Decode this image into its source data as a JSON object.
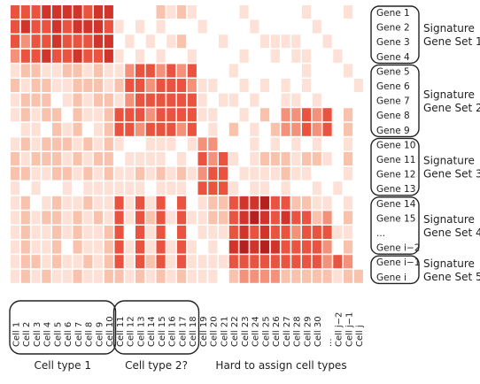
{
  "figure": {
    "gene_labels": [
      "Gene 1",
      "Gene 2",
      "Gene 3",
      "Gene 4",
      "Gene 5",
      "Gene 6",
      "Gene 7",
      "Gene 8",
      "Gene 9",
      "Gene 10",
      "Gene 11",
      "Gene 12",
      "Gene 13",
      "Gene 14",
      "Gene 15",
      "...",
      "Gene i−2",
      "Gene i−1",
      "Gene i"
    ],
    "gene_groups": [
      {
        "label_line1": "Signature",
        "label_line2": "Gene Set 1",
        "rows": [
          0,
          3
        ]
      },
      {
        "label_line1": "Signature",
        "label_line2": "Gene Set 2",
        "rows": [
          4,
          8
        ]
      },
      {
        "label_line1": "Signature",
        "label_line2": "Gene Set 3",
        "rows": [
          9,
          12
        ]
      },
      {
        "label_line1": "Signature",
        "label_line2": "Gene Set 4",
        "rows": [
          13,
          16
        ]
      },
      {
        "label_line1": "Signature",
        "label_line2": "Gene Set 5",
        "rows": [
          17,
          18
        ]
      }
    ],
    "cell_labels": [
      "Cell 1",
      "Cell 2",
      "Cell 3",
      "Cell 4",
      "Cell 5",
      "Cell 6",
      "Cell 7",
      "Cell 8",
      "Cell 9",
      "Cell 10",
      "Cell 11",
      "Cell 12",
      "Cell 13",
      "Cell 14",
      "Cell 15",
      "Cell 16",
      "Cell 17",
      "Cell 18",
      "Cell 19",
      "Cell 20",
      "Cell 21",
      "Cell 22",
      "Cell 23",
      "Cell 24",
      "Cell 25",
      "Cell 26",
      "Cell 27",
      "Cell 28",
      "Cell 29",
      "Cell 30",
      "...",
      "Cell j−2",
      "Cell j−1",
      "Cell j"
    ],
    "cell_groups": [
      {
        "label": "Cell type 1",
        "columns": [
          0,
          9
        ],
        "boxed": true
      },
      {
        "label": "Cell type 2?",
        "columns": [
          10,
          17
        ],
        "boxed": true
      },
      {
        "label": "Hard to assign cell types",
        "columns": [
          18,
          33
        ],
        "boxed": false
      }
    ],
    "color_scale": [
      "#ffffff",
      "#fde0d6",
      "#f9c2ad",
      "#f4917a",
      "#e9533f",
      "#d1342a",
      "#b5211e"
    ],
    "matrix": [
      [
        4,
        4,
        4,
        5,
        5,
        5,
        5,
        4,
        5,
        5,
        0,
        0,
        0,
        0,
        2,
        1,
        2,
        1,
        0,
        0,
        0,
        0,
        1,
        0,
        0,
        0,
        0,
        0,
        1,
        0,
        0,
        0,
        1,
        0
      ],
      [
        4,
        5,
        4,
        4,
        5,
        4,
        5,
        5,
        5,
        4,
        1,
        0,
        1,
        0,
        1,
        0,
        0,
        0,
        1,
        0,
        0,
        0,
        0,
        1,
        0,
        0,
        0,
        0,
        0,
        1,
        0,
        0,
        0,
        0
      ],
      [
        4,
        3,
        4,
        4,
        5,
        4,
        4,
        4,
        5,
        5,
        0,
        1,
        0,
        1,
        0,
        1,
        2,
        0,
        0,
        0,
        1,
        0,
        0,
        0,
        1,
        1,
        1,
        1,
        0,
        0,
        1,
        0,
        0,
        0
      ],
      [
        3,
        4,
        4,
        5,
        4,
        4,
        5,
        4,
        4,
        5,
        1,
        0,
        1,
        0,
        1,
        0,
        0,
        1,
        0,
        0,
        0,
        0,
        1,
        0,
        0,
        1,
        0,
        1,
        1,
        0,
        0,
        1,
        0,
        0
      ],
      [
        1,
        2,
        2,
        1,
        1,
        2,
        2,
        1,
        2,
        1,
        1,
        3,
        4,
        4,
        3,
        4,
        3,
        4,
        0,
        0,
        0,
        1,
        0,
        0,
        0,
        0,
        0,
        0,
        1,
        0,
        0,
        0,
        1,
        0
      ],
      [
        2,
        1,
        2,
        2,
        1,
        1,
        2,
        2,
        2,
        1,
        2,
        4,
        4,
        3,
        4,
        4,
        4,
        3,
        1,
        1,
        0,
        0,
        1,
        0,
        1,
        0,
        1,
        0,
        1,
        0,
        0,
        0,
        0,
        1
      ],
      [
        1,
        2,
        2,
        2,
        0,
        1,
        2,
        1,
        2,
        2,
        1,
        3,
        4,
        4,
        4,
        4,
        4,
        4,
        1,
        0,
        1,
        1,
        0,
        1,
        0,
        0,
        1,
        1,
        0,
        1,
        0,
        0,
        0,
        0
      ],
      [
        1,
        2,
        1,
        2,
        2,
        0,
        2,
        1,
        1,
        2,
        4,
        4,
        4,
        3,
        4,
        4,
        4,
        4,
        1,
        1,
        0,
        0,
        1,
        0,
        2,
        0,
        3,
        3,
        4,
        3,
        4,
        0,
        2,
        0
      ],
      [
        0,
        1,
        1,
        0,
        2,
        1,
        2,
        0,
        1,
        2,
        4,
        4,
        3,
        4,
        4,
        4,
        3,
        4,
        0,
        1,
        0,
        2,
        0,
        1,
        0,
        2,
        3,
        3,
        4,
        3,
        4,
        0,
        2,
        0
      ],
      [
        1,
        2,
        1,
        2,
        2,
        2,
        1,
        2,
        1,
        2,
        1,
        0,
        0,
        1,
        1,
        1,
        0,
        1,
        3,
        3,
        0,
        0,
        0,
        1,
        0,
        1,
        0,
        1,
        0,
        1,
        0,
        0,
        1,
        0
      ],
      [
        2,
        1,
        2,
        2,
        2,
        1,
        2,
        1,
        2,
        2,
        0,
        1,
        1,
        1,
        1,
        0,
        1,
        0,
        4,
        3,
        4,
        1,
        0,
        1,
        2,
        2,
        2,
        1,
        2,
        2,
        1,
        0,
        2,
        0
      ],
      [
        2,
        2,
        1,
        1,
        2,
        2,
        1,
        2,
        1,
        2,
        1,
        1,
        2,
        1,
        2,
        1,
        2,
        1,
        3,
        4,
        4,
        0,
        1,
        1,
        1,
        1,
        2,
        1,
        1,
        0,
        0,
        0,
        1,
        0
      ],
      [
        1,
        0,
        1,
        0,
        0,
        1,
        0,
        1,
        1,
        1,
        1,
        1,
        1,
        0,
        1,
        1,
        1,
        0,
        4,
        4,
        4,
        1,
        0,
        1,
        1,
        0,
        1,
        0,
        0,
        1,
        0,
        1,
        0,
        0
      ],
      [
        1,
        2,
        0,
        1,
        2,
        1,
        1,
        2,
        1,
        1,
        4,
        1,
        4,
        1,
        4,
        0,
        4,
        0,
        1,
        2,
        2,
        4,
        5,
        5,
        6,
        4,
        4,
        2,
        2,
        1,
        1,
        0,
        1,
        0
      ],
      [
        1,
        2,
        1,
        2,
        2,
        1,
        2,
        1,
        2,
        1,
        4,
        1,
        4,
        2,
        4,
        1,
        4,
        1,
        1,
        2,
        2,
        4,
        5,
        6,
        5,
        4,
        5,
        4,
        4,
        2,
        3,
        0,
        2,
        0
      ],
      [
        1,
        2,
        1,
        1,
        2,
        1,
        2,
        1,
        1,
        2,
        4,
        0,
        4,
        1,
        4,
        0,
        4,
        0,
        1,
        1,
        1,
        4,
        5,
        4,
        5,
        4,
        4,
        3,
        4,
        4,
        4,
        1,
        1,
        0
      ],
      [
        1,
        2,
        1,
        1,
        2,
        0,
        2,
        1,
        1,
        2,
        4,
        1,
        4,
        1,
        4,
        1,
        4,
        1,
        0,
        1,
        0,
        5,
        6,
        5,
        6,
        5,
        4,
        4,
        4,
        4,
        3,
        0,
        2,
        0
      ],
      [
        1,
        2,
        2,
        1,
        2,
        1,
        1,
        2,
        1,
        2,
        4,
        1,
        4,
        2,
        4,
        1,
        4,
        1,
        1,
        1,
        1,
        4,
        4,
        4,
        4,
        4,
        4,
        4,
        4,
        4,
        3,
        4,
        3,
        0
      ],
      [
        1,
        2,
        1,
        2,
        1,
        1,
        2,
        1,
        1,
        2,
        2,
        1,
        2,
        1,
        2,
        1,
        2,
        1,
        1,
        1,
        0,
        2,
        3,
        3,
        3,
        3,
        2,
        2,
        2,
        2,
        2,
        1,
        2,
        2
      ]
    ]
  }
}
